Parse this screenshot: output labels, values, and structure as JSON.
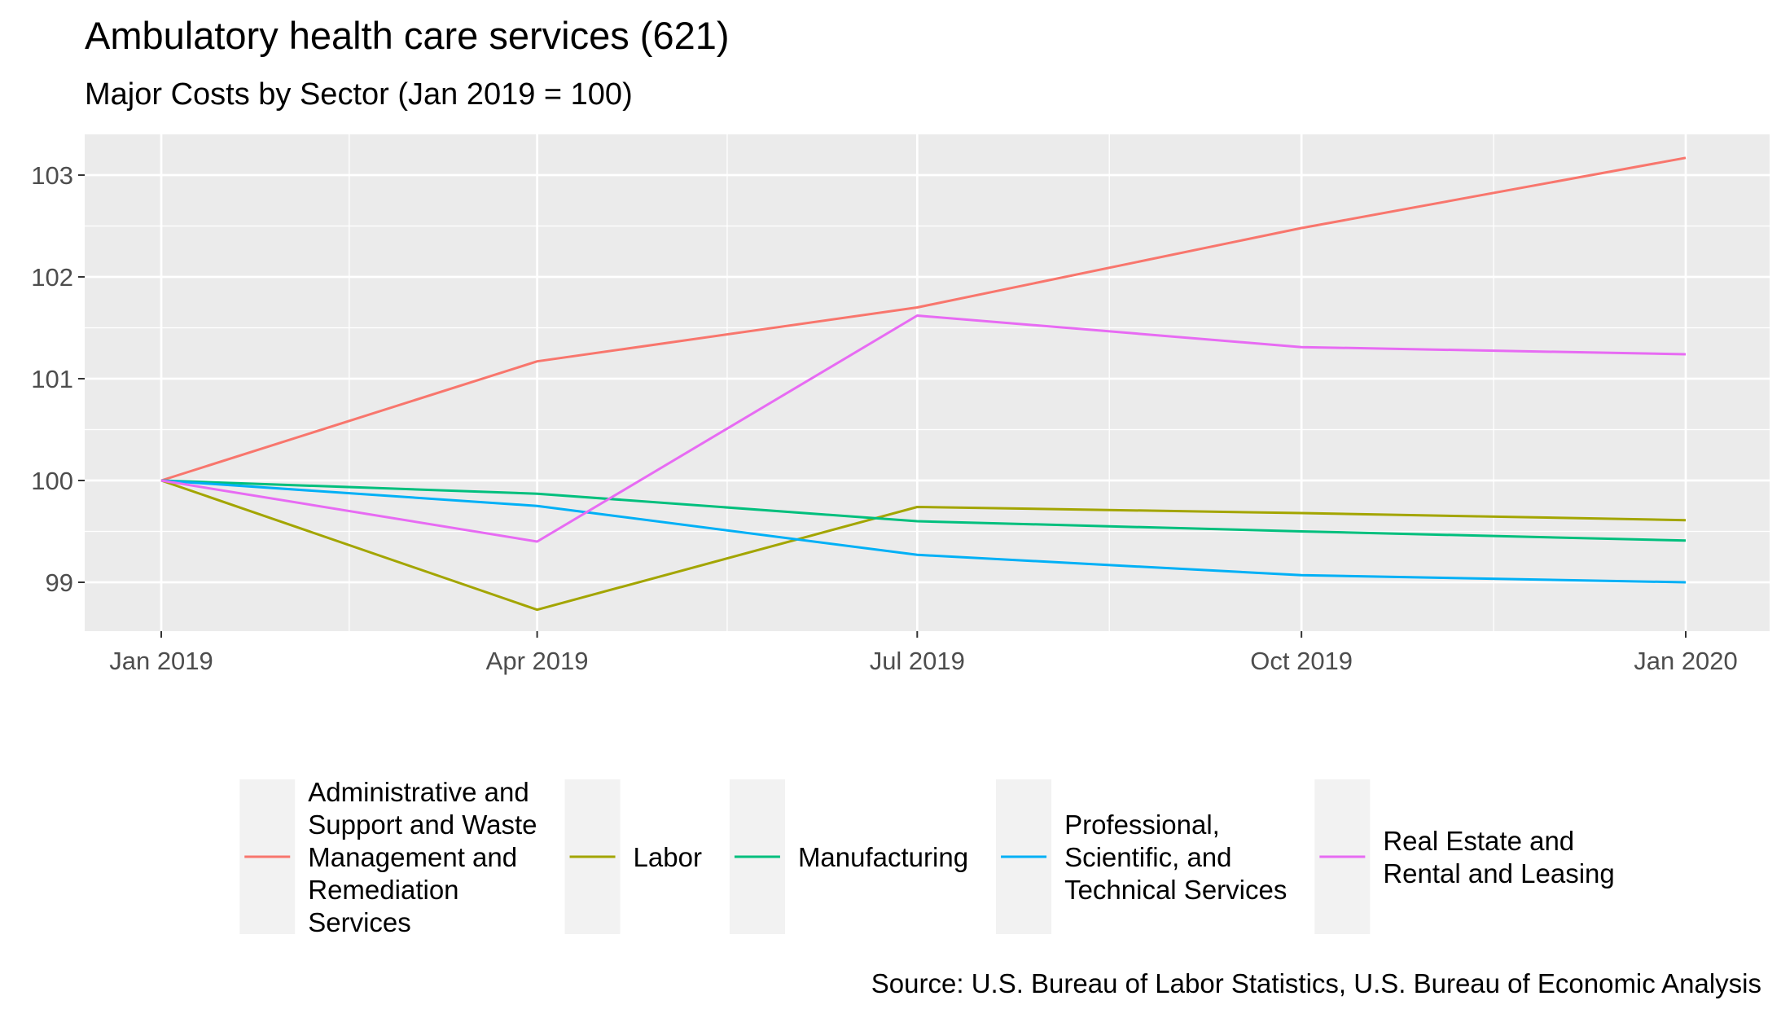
{
  "chart_data": {
    "type": "line",
    "title": "Ambulatory health care services (621)",
    "subtitle": "Major Costs by Sector (Jan 2019 = 100)",
    "caption": "Source: U.S. Bureau of Labor Statistics, U.S. Bureau of Economic Analysis",
    "x": [
      "2019-01-01",
      "2019-04-01",
      "2019-07-01",
      "2019-10-01",
      "2020-01-01"
    ],
    "x_tick_labels": [
      "Jan 2019",
      "Apr 2019",
      "Jul 2019",
      "Oct 2019",
      "Jan 2020"
    ],
    "y_ticks": [
      99,
      100,
      101,
      102,
      103
    ],
    "ylim": [
      98.52,
      103.4
    ],
    "grid": true,
    "legend_position": "bottom",
    "series": [
      {
        "name": "Administrative and Support and Waste Management and Remediation Services",
        "legend_lines": [
          "Administrative and",
          "Support and Waste",
          "Management and",
          "Remediation",
          "Services"
        ],
        "color": "#F8766D",
        "values": [
          100,
          101.17,
          101.7,
          102.48,
          103.17
        ]
      },
      {
        "name": "Labor",
        "legend_lines": [
          "Labor"
        ],
        "color": "#A3A500",
        "values": [
          100,
          98.73,
          99.74,
          99.68,
          99.61
        ]
      },
      {
        "name": "Manufacturing",
        "legend_lines": [
          "Manufacturing"
        ],
        "color": "#00BF7D",
        "values": [
          100,
          99.87,
          99.6,
          99.5,
          99.41
        ]
      },
      {
        "name": "Professional, Scientific, and Technical Services",
        "legend_lines": [
          "Professional,",
          "Scientific, and",
          "Technical Services"
        ],
        "color": "#00B0F6",
        "values": [
          100,
          99.75,
          99.27,
          99.07,
          99.0
        ]
      },
      {
        "name": "Real Estate and Rental and Leasing",
        "legend_lines": [
          "Real Estate and",
          "Rental and Leasing"
        ],
        "color": "#E76BF3",
        "values": [
          100,
          99.4,
          101.62,
          101.31,
          101.24
        ]
      }
    ]
  }
}
